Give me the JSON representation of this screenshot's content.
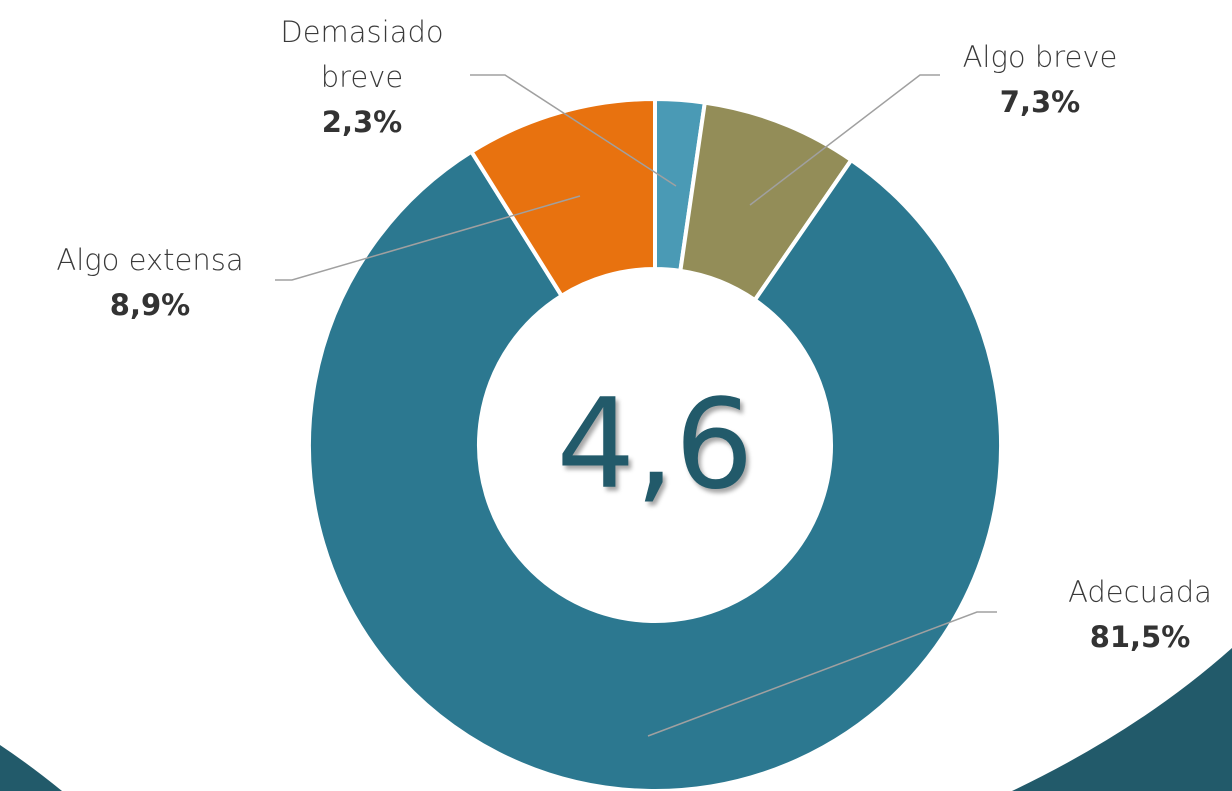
{
  "chart_data": {
    "type": "donut",
    "categories": [
      "Demasiado breve",
      "Algo breve",
      "Adecuada",
      "Algo extensa"
    ],
    "values": [
      2.3,
      7.3,
      81.5,
      8.9
    ],
    "value_labels": [
      "2,3%",
      "7,3%",
      "81,5%",
      "8,9%"
    ],
    "colors": [
      "#4a9ab5",
      "#938d58",
      "#2c7890",
      "#e8720f"
    ],
    "center_label": "4,6"
  }
}
